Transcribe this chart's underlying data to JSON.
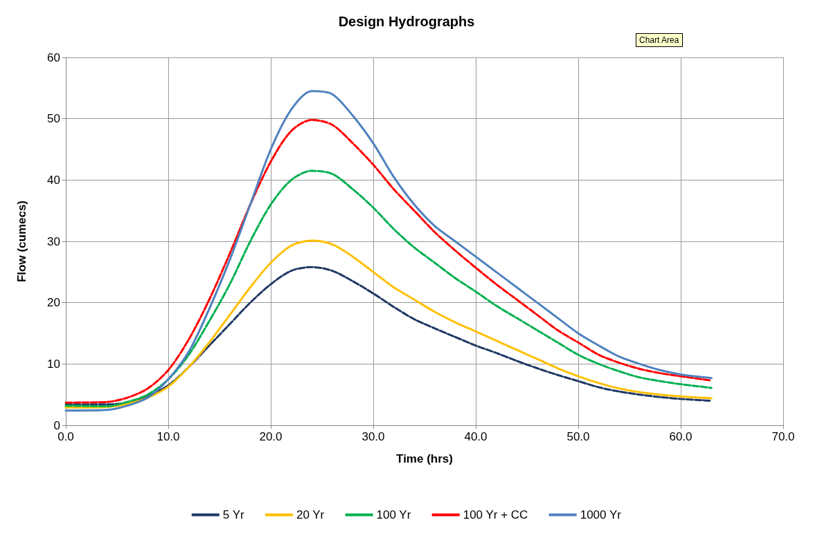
{
  "chart_data": {
    "type": "line",
    "title": "Design Hydrographs",
    "xlabel": "Time (hrs)",
    "ylabel": "Flow (cumecs)",
    "annotations": [
      "Chart Area"
    ],
    "x": [
      0,
      4,
      6,
      8,
      10,
      12,
      14,
      16,
      18,
      20,
      22,
      24,
      26,
      28,
      30,
      32,
      34,
      36,
      38,
      40,
      42,
      44,
      46,
      48,
      50,
      52,
      54,
      56,
      58,
      60,
      63
    ],
    "series": [
      {
        "name": "5 Yr",
        "color": "#1f3864",
        "line_style": "dashed",
        "values": [
          3.4,
          3.4,
          3.7,
          4.8,
          6.5,
          9.5,
          13,
          16.5,
          20,
          23,
          25.2,
          25.8,
          25.2,
          23.5,
          21.5,
          19.3,
          17.3,
          15.8,
          14.4,
          13,
          11.8,
          10.5,
          9.3,
          8.2,
          7.2,
          6.2,
          5.5,
          5,
          4.6,
          4.3,
          4
        ]
      },
      {
        "name": "20 Yr",
        "color": "#ffc000",
        "line_style": "solid",
        "values": [
          2.9,
          3,
          3.5,
          4.5,
          6.3,
          9.5,
          13.5,
          18,
          22.5,
          26.5,
          29.3,
          30.1,
          29.5,
          27.5,
          25,
          22.5,
          20.5,
          18.5,
          16.8,
          15.3,
          13.8,
          12.3,
          10.8,
          9.3,
          8,
          6.9,
          6,
          5.4,
          5,
          4.7,
          4.4
        ]
      },
      {
        "name": "100 Yr",
        "color": "#00b050",
        "line_style": "dashed",
        "values": [
          3.2,
          3.1,
          3.8,
          5,
          7.5,
          11.5,
          17,
          23,
          30,
          36,
          40,
          41.5,
          41,
          38.5,
          35.5,
          32,
          29,
          26.5,
          24,
          21.8,
          19.5,
          17.5,
          15.5,
          13.5,
          11.5,
          10,
          8.8,
          7.8,
          7.2,
          6.7,
          6.1
        ]
      },
      {
        "name": "100 Yr + CC",
        "color": "#ff0000",
        "line_style": "dashed",
        "values": [
          3.7,
          3.8,
          4.5,
          6,
          9,
          14,
          20.5,
          28,
          36,
          43,
          48,
          49.8,
          49,
          46,
          42.5,
          38.5,
          35,
          31.5,
          28.5,
          25.7,
          23,
          20.5,
          18,
          15.5,
          13.5,
          11.5,
          10.2,
          9.2,
          8.5,
          8,
          7.3
        ]
      },
      {
        "name": "1000 Yr",
        "color": "#4f81bd",
        "line_style": "solid",
        "values": [
          2.4,
          2.5,
          3.2,
          4.5,
          7.5,
          12,
          19,
          27,
          36,
          45,
          51.5,
          54.5,
          54,
          50.5,
          46,
          40.5,
          36,
          32.5,
          30,
          27.5,
          25,
          22.5,
          20,
          17.5,
          15,
          13,
          11.2,
          10,
          9,
          8.3,
          7.7
        ]
      }
    ],
    "xlim": [
      0,
      70
    ],
    "xticks": [
      {
        "value": 0,
        "label": "0.0"
      },
      {
        "value": 10,
        "label": "10.0"
      },
      {
        "value": 20,
        "label": "20.0"
      },
      {
        "value": 30,
        "label": "30.0"
      },
      {
        "value": 40,
        "label": "40.0"
      },
      {
        "value": 50,
        "label": "50.0"
      },
      {
        "value": 60,
        "label": "60.0"
      },
      {
        "value": 70,
        "label": "70.0"
      }
    ],
    "ylim": [
      0,
      60
    ],
    "yticks": [
      0,
      10,
      20,
      30,
      40,
      50,
      60
    ],
    "grid": true,
    "legend": "bottom",
    "marker": "none"
  }
}
